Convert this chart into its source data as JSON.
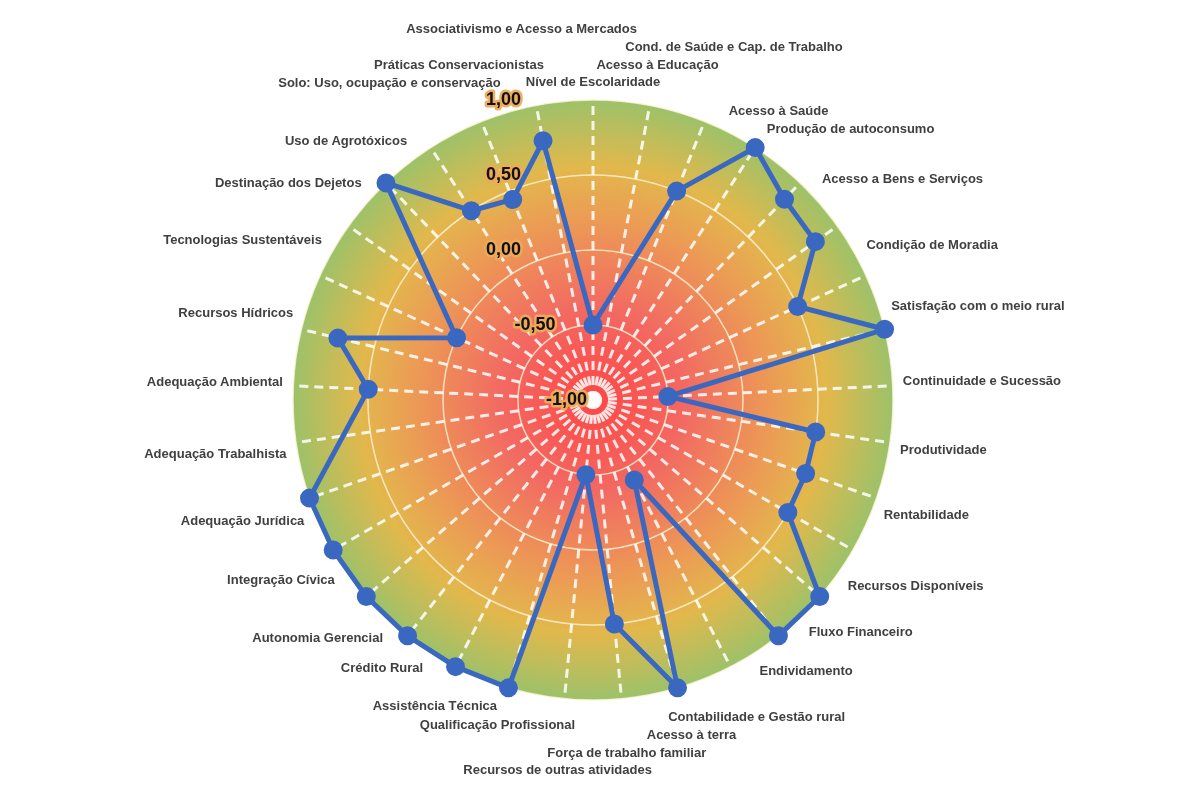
{
  "chart_data": {
    "type": "radar",
    "categories": [
      "Nível de Escolaridade",
      "Acesso à Educação",
      "Cond. de Saúde e Cap. de Trabalho",
      "Acesso à Saúde",
      "Produção de autoconsumo",
      "Acesso a Bens e Serviços",
      "Condição de Moradia",
      "Satisfação com o meio rural",
      "Continuidade e Sucessão",
      "Produtividade",
      "Rentabilidade",
      "Recursos Disponíveis",
      "Fluxo Financeiro",
      "Endividamento",
      "Contabilidade e Gestão rural",
      "Acesso à terra",
      "Força de trabalho familiar",
      "Recursos de outras atividades",
      "Qualificação Profissional",
      "Assistência Técnica",
      "Crédito Rural",
      "Autonomia Gerencial",
      "Integração Cívica",
      "Adequação Jurídica",
      "Adequação Trabalhista",
      "Adequação Ambiental",
      "Recursos Hídricos",
      "Tecnologias Sustentáveis",
      "Destinação dos Dejetos",
      "Uso de Agrotóxicos",
      "Solo: Uso, ocupação e conservação",
      "Práticas Conservacionistas",
      "Associativismo e Acesso a Mercados"
    ],
    "series": [
      {
        "color": "#3a68c0",
        "values": [
          -0.5,
          null,
          0.5,
          1,
          0.85,
          0.82,
          0.5,
          1,
          -0.5,
          0.5,
          0.5,
          0.5,
          1,
          1,
          -0.4,
          1,
          0.5,
          -0.5,
          1,
          1,
          1,
          1,
          1,
          1,
          null,
          0.5,
          0.75,
          0,
          null,
          1,
          0.5,
          0.44,
          0.76
        ]
      }
    ],
    "ylim": [
      -1,
      1
    ],
    "yticks": [
      {
        "value": -1,
        "label": "-1,00"
      },
      {
        "value": -0.5,
        "label": "-0,50"
      },
      {
        "value": 0,
        "label": "0,00"
      },
      {
        "value": 0.5,
        "label": "0,50"
      },
      {
        "value": 1,
        "label": "1,00"
      }
    ],
    "grid": true,
    "marker": "circle"
  }
}
